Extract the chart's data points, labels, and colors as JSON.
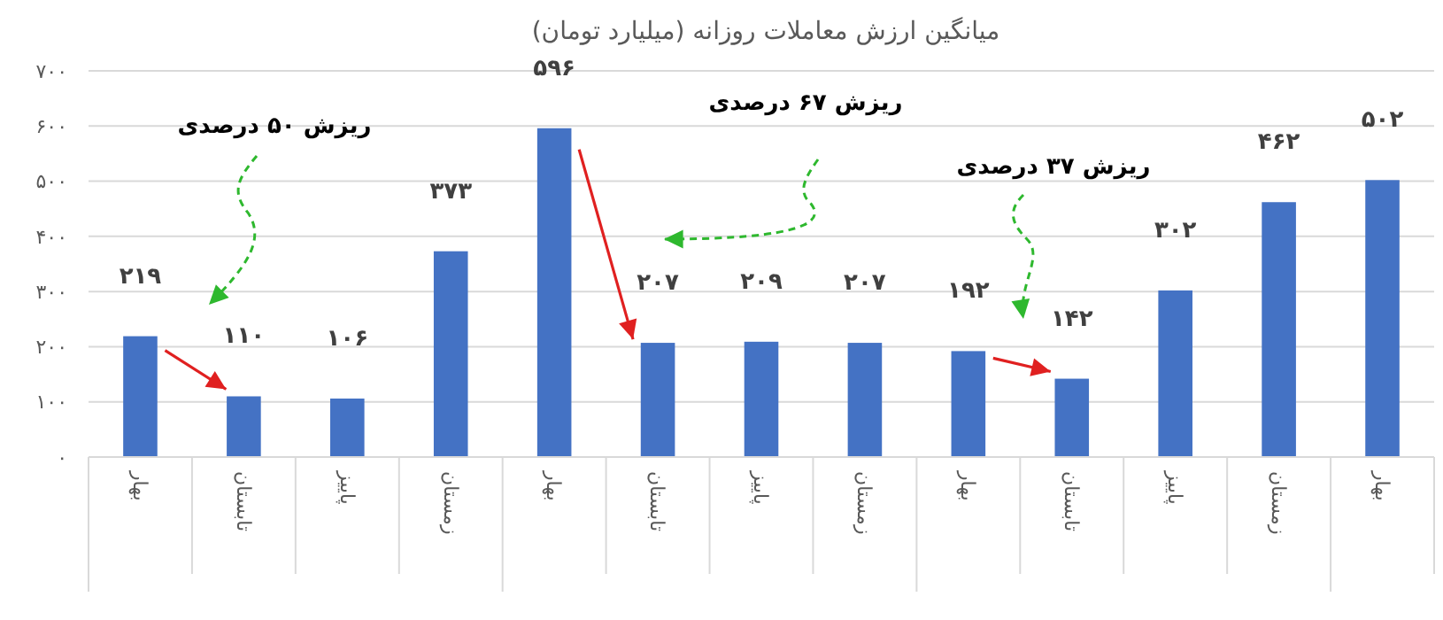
{
  "chart_data": {
    "type": "bar",
    "title": "میانگین ارزش معاملات روزانه (میلیارد تومان)",
    "categories": [
      "بهار",
      "تابستان",
      "پاییز",
      "زمستان",
      "بهار",
      "تابستان",
      "پاییز",
      "زمستان",
      "بهار",
      "تابستان",
      "پاییز",
      "زمستان",
      "بهار"
    ],
    "values": [
      219,
      110,
      106,
      373,
      596,
      207,
      209,
      207,
      192,
      142,
      302,
      462,
      502
    ],
    "value_labels": [
      "۲۱۹",
      "۱۱۰",
      "۱۰۶",
      "۳۷۳",
      "۵۹۶",
      "۲۰۷",
      "۲۰۹",
      "۲۰۷",
      "۱۹۲",
      "۱۴۲",
      "۳۰۲",
      "۴۶۲",
      "۵۰۲"
    ],
    "color": "#4472c4",
    "ylim": [
      0,
      700
    ],
    "yticks": [
      {
        "value": 0,
        "label": "۰"
      },
      {
        "value": 100,
        "label": "۱۰۰"
      },
      {
        "value": 200,
        "label": "۲۰۰"
      },
      {
        "value": 300,
        "label": "۳۰۰"
      },
      {
        "value": 400,
        "label": "۴۰۰"
      },
      {
        "value": 500,
        "label": "۵۰۰"
      },
      {
        "value": 600,
        "label": "۶۰۰"
      },
      {
        "value": 700,
        "label": "۷۰۰"
      }
    ],
    "grid": "y",
    "annotations": [
      "ریزش ۵۰ درصدی",
      "ریزش ۶۷ درصدی",
      "ریزش ۳۷ درصدی"
    ]
  }
}
